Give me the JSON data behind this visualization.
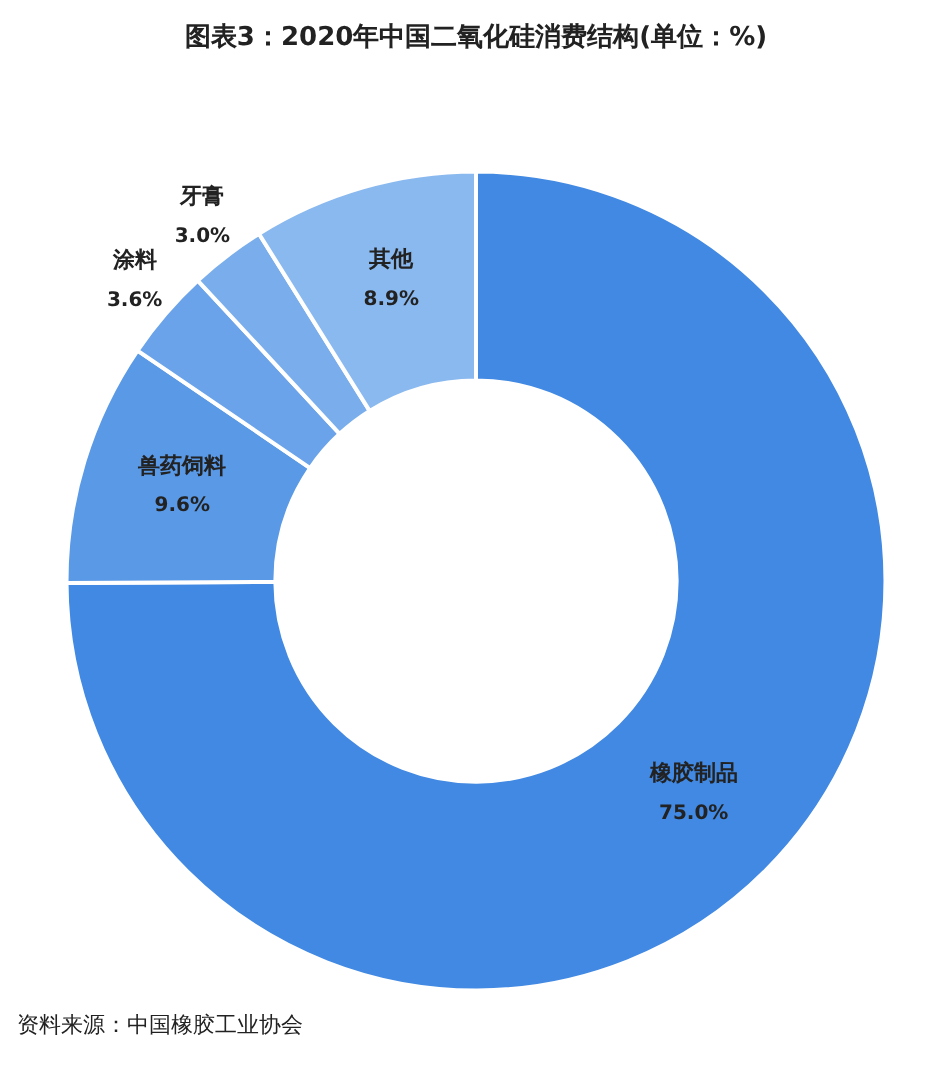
{
  "chart_data": {
    "type": "donut",
    "title": "图表3：2020年中国二氧化硅消费结构(单位：%)",
    "categories": [
      "橡胶制品",
      "兽药饲料",
      "涂料",
      "牙膏",
      "其他"
    ],
    "values": [
      75.0,
      9.6,
      3.6,
      3.0,
      8.9
    ],
    "value_labels": [
      "75.0%",
      "9.6%",
      "3.6%",
      "3.0%",
      "8.9%"
    ],
    "colors": [
      "#4189e2",
      "#5a99e6",
      "#6aa3e9",
      "#79adeb",
      "#8ab9ef"
    ],
    "annotations": [
      "资料来源：中国橡胶工业协会"
    ],
    "legend": false
  }
}
